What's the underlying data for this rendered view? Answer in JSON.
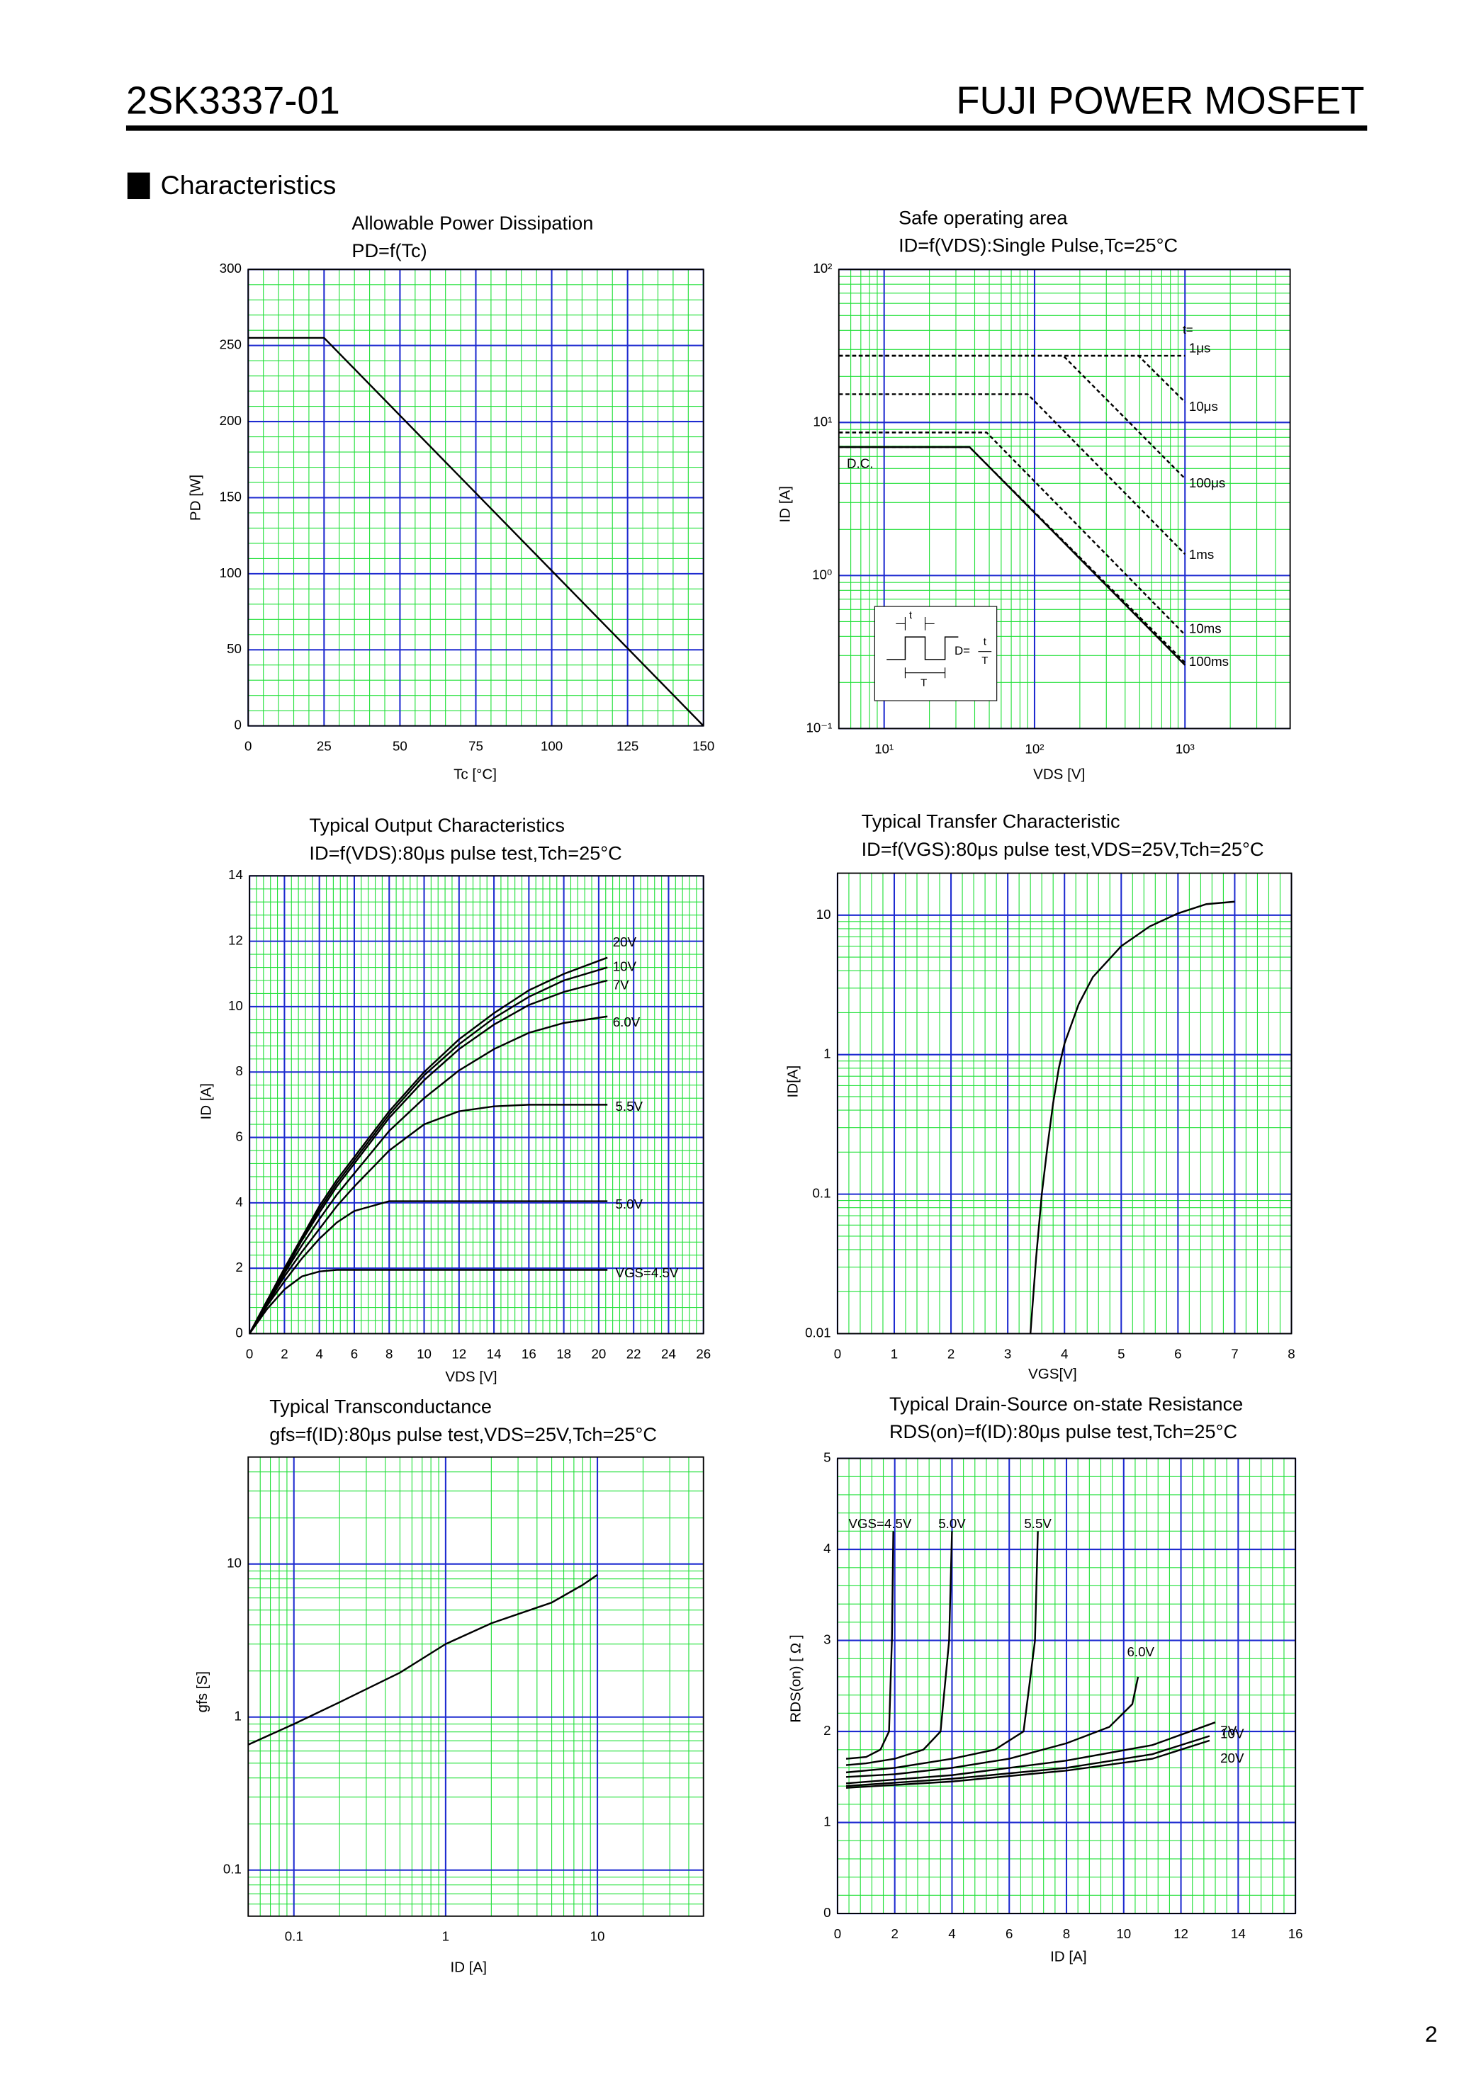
{
  "header": {
    "part_number": "2SK3337-01",
    "product_line": "FUJI POWER MOSFET"
  },
  "section_title": "Characteristics",
  "page_number": "2",
  "chart_data": [
    {
      "type": "line",
      "title": "Allowable Power Dissipation",
      "subtitle": "PD=f(Tc)",
      "xlabel": "Tc [°C]",
      "ylabel": "PD [W]",
      "xlim": [
        0,
        150
      ],
      "xticks": [
        0,
        25,
        50,
        75,
        100,
        125,
        150
      ],
      "ylim": [
        0,
        300
      ],
      "yticks": [
        0,
        50,
        100,
        150,
        200,
        250,
        300
      ],
      "grid": true,
      "series": [
        {
          "color": "#000000",
          "style": "solid",
          "x": [
            0,
            25,
            150
          ],
          "values": [
            255,
            255,
            0
          ]
        }
      ]
    },
    {
      "type": "line",
      "title": "Safe operating area",
      "subtitle": "ID=f(VDS):Single Pulse,Tc=25°C",
      "xlabel": "VDS [V]",
      "ylabel": "ID [A]",
      "xscale": "log",
      "yscale": "log",
      "xlim": [
        5,
        5000
      ],
      "xticks": [
        {
          "value": 10,
          "label": "10¹"
        },
        {
          "value": 100,
          "label": "10²"
        },
        {
          "value": 1000,
          "label": "10³"
        }
      ],
      "ylim": [
        0.1,
        100
      ],
      "yticks": [
        {
          "value": 0.1,
          "label": "10⁻¹"
        },
        {
          "value": 1,
          "label": "10⁰"
        },
        {
          "value": 10,
          "label": "10¹"
        },
        {
          "value": 100,
          "label": "10²"
        }
      ],
      "grid": true,
      "annotations": [
        "t=",
        "t",
        "T",
        "D=",
        "t",
        "T"
      ],
      "series": [
        {
          "name": "1μs",
          "color": "#000000",
          "style": "dashed",
          "x": [
            5,
            1000
          ],
          "values": [
            27.3,
            27.3
          ]
        },
        {
          "name": "10μs",
          "color": "#000000",
          "style": "dashed",
          "x": [
            5,
            490,
            1000
          ],
          "values": [
            27.3,
            27.3,
            13.6
          ]
        },
        {
          "name": "100μs",
          "color": "#000000",
          "style": "dashed",
          "x": [
            5,
            155,
            1000
          ],
          "values": [
            27.3,
            27.3,
            4.3
          ]
        },
        {
          "name": "1ms",
          "color": "#000000",
          "style": "dashed",
          "x": [
            5,
            90,
            1000
          ],
          "values": [
            15.3,
            15.3,
            1.38
          ]
        },
        {
          "name": "10ms",
          "color": "#000000",
          "style": "dashed",
          "x": [
            5,
            48,
            1000
          ],
          "values": [
            8.6,
            8.6,
            0.41
          ]
        },
        {
          "name": "100ms",
          "color": "#000000",
          "style": "dashed",
          "x": [
            5,
            37,
            1000
          ],
          "values": [
            6.9,
            6.9,
            0.27
          ]
        },
        {
          "name": "D.C.",
          "color": "#000000",
          "style": "solid",
          "x": [
            5,
            37,
            1000
          ],
          "values": [
            6.9,
            6.9,
            0.26
          ]
        }
      ]
    },
    {
      "type": "line",
      "title": "Typical Output Characteristics",
      "subtitle": "ID=f(VDS):80μs pulse test,Tch=25°C",
      "xlabel": "VDS [V]",
      "ylabel": "ID [A]",
      "xlim": [
        0,
        26
      ],
      "xticks": [
        0,
        2,
        4,
        6,
        8,
        10,
        12,
        14,
        16,
        18,
        20,
        22,
        24,
        26
      ],
      "ylim": [
        0,
        14
      ],
      "yticks": [
        0,
        2,
        4,
        6,
        8,
        10,
        12,
        14
      ],
      "grid": true,
      "series": [
        {
          "name": "20V",
          "color": "#000000",
          "style": "solid",
          "x": [
            0,
            1,
            2,
            3,
            4,
            5,
            6,
            8,
            10,
            12,
            14,
            16,
            18,
            20.5
          ],
          "values": [
            0,
            1.0,
            2.0,
            2.95,
            3.9,
            4.7,
            5.4,
            6.8,
            8.0,
            9.0,
            9.8,
            10.5,
            11.0,
            11.5
          ]
        },
        {
          "name": "10V",
          "color": "#000000",
          "style": "solid",
          "x": [
            0,
            1,
            2,
            3,
            4,
            5,
            6,
            8,
            10,
            12,
            14,
            16,
            18,
            20.5
          ],
          "values": [
            0,
            1.0,
            1.95,
            2.9,
            3.8,
            4.6,
            5.3,
            6.7,
            7.9,
            8.85,
            9.65,
            10.3,
            10.8,
            11.2
          ]
        },
        {
          "name": "7V",
          "color": "#000000",
          "style": "solid",
          "x": [
            0,
            1,
            2,
            3,
            4,
            5,
            6,
            8,
            10,
            12,
            14,
            16,
            18,
            20.5
          ],
          "values": [
            0,
            1.0,
            1.9,
            2.85,
            3.7,
            4.5,
            5.2,
            6.6,
            7.75,
            8.7,
            9.45,
            10.05,
            10.45,
            10.8
          ]
        },
        {
          "name": "6.0V",
          "color": "#000000",
          "style": "solid",
          "x": [
            0,
            1,
            2,
            3,
            4,
            5,
            6,
            8,
            10,
            12,
            14,
            16,
            18,
            20.5
          ],
          "values": [
            0,
            0.95,
            1.85,
            2.7,
            3.5,
            4.25,
            4.9,
            6.2,
            7.2,
            8.05,
            8.7,
            9.2,
            9.5,
            9.7
          ]
        },
        {
          "name": "5.5V",
          "color": "#000000",
          "style": "solid",
          "x": [
            0,
            1,
            2,
            3,
            4,
            5,
            6,
            8,
            10,
            12,
            14,
            16,
            18,
            20.5
          ],
          "values": [
            0,
            0.9,
            1.75,
            2.5,
            3.2,
            3.9,
            4.5,
            5.6,
            6.4,
            6.8,
            6.95,
            7.0,
            7.0,
            7.0
          ]
        },
        {
          "name": "5.0V",
          "color": "#000000",
          "style": "solid",
          "x": [
            0,
            1,
            2,
            3,
            4,
            5,
            6,
            8,
            10,
            12,
            14,
            16,
            18,
            20.5
          ],
          "values": [
            0,
            0.85,
            1.6,
            2.3,
            2.9,
            3.4,
            3.75,
            4.05,
            4.05,
            4.05,
            4.05,
            4.05,
            4.05,
            4.05
          ]
        },
        {
          "name": "VGS=4.5V",
          "color": "#000000",
          "style": "solid",
          "x": [
            0,
            1,
            2,
            3,
            4,
            5,
            6,
            8,
            10,
            12,
            14,
            16,
            18,
            20.5
          ],
          "values": [
            0,
            0.75,
            1.35,
            1.75,
            1.9,
            1.95,
            1.95,
            1.95,
            1.95,
            1.95,
            1.95,
            1.95,
            1.95,
            1.95
          ]
        }
      ]
    },
    {
      "type": "line",
      "title": "Typical Transfer Characteristic",
      "subtitle": "ID=f(VGS):80μs pulse test,VDS=25V,Tch=25°C",
      "xlabel": "VGS[V]",
      "ylabel": "ID[A]",
      "yscale": "log",
      "xlim": [
        0,
        8
      ],
      "xticks": [
        0,
        1,
        2,
        3,
        4,
        5,
        6,
        7,
        8
      ],
      "ylim": [
        0.01,
        20
      ],
      "yticks": [
        0.01,
        0.1,
        1,
        10
      ],
      "grid": true,
      "series": [
        {
          "color": "#000000",
          "style": "solid",
          "x": [
            3.4,
            3.5,
            3.6,
            3.7,
            3.8,
            3.9,
            4.0,
            4.25,
            4.5,
            5.0,
            5.5,
            6.0,
            6.5,
            7.0
          ],
          "values": [
            0.01,
            0.035,
            0.1,
            0.22,
            0.45,
            0.8,
            1.2,
            2.3,
            3.6,
            6.0,
            8.3,
            10.3,
            12,
            12.5
          ]
        }
      ]
    },
    {
      "type": "line",
      "title": "Typical Transconductance",
      "subtitle": "gfs=f(ID):80μs pulse test,VDS=25V,Tch=25°C",
      "xlabel": "ID [A]",
      "ylabel": "gfs [S]",
      "xscale": "log",
      "yscale": "log",
      "xlim": [
        0.05,
        50
      ],
      "xticks": [
        0.1,
        1,
        10
      ],
      "ylim": [
        0.05,
        50
      ],
      "yticks": [
        0.1,
        1,
        10
      ],
      "grid": true,
      "series": [
        {
          "color": "#000000",
          "style": "solid",
          "x": [
            0.05,
            0.1,
            0.2,
            0.5,
            1,
            2,
            5,
            8,
            10
          ],
          "values": [
            0.66,
            0.9,
            1.25,
            1.95,
            3.0,
            4.1,
            5.6,
            7.3,
            8.5
          ]
        }
      ]
    },
    {
      "type": "line",
      "title": "Typical Drain-Source on-state Resistance",
      "subtitle": "RDS(on)=f(ID):80μs pulse test,Tch=25°C",
      "xlabel": "ID [A]",
      "ylabel": "RDS(on) [ Ω ]",
      "xlim": [
        0,
        16
      ],
      "xticks": [
        0,
        2,
        4,
        6,
        8,
        10,
        12,
        14,
        16
      ],
      "ylim": [
        0,
        5
      ],
      "yticks": [
        0,
        1,
        2,
        3,
        4,
        5
      ],
      "grid": true,
      "series": [
        {
          "name": "VGS=4.5V",
          "color": "#000000",
          "style": "solid",
          "x": [
            0.3,
            1,
            1.5,
            1.8,
            1.9,
            1.95
          ],
          "values": [
            1.7,
            1.72,
            1.8,
            2.0,
            3.0,
            4.2
          ]
        },
        {
          "name": "5.0V",
          "color": "#000000",
          "style": "solid",
          "x": [
            0.3,
            1,
            2,
            3,
            3.6,
            3.9,
            4.0
          ],
          "values": [
            1.63,
            1.65,
            1.7,
            1.8,
            2.0,
            3.0,
            4.2
          ]
        },
        {
          "name": "5.5V",
          "color": "#000000",
          "style": "solid",
          "x": [
            0.3,
            2,
            4,
            5.5,
            6.5,
            6.9,
            7.0
          ],
          "values": [
            1.55,
            1.6,
            1.7,
            1.8,
            2.0,
            3.0,
            4.2
          ]
        },
        {
          "name": "6.0V",
          "color": "#000000",
          "style": "solid",
          "x": [
            0.3,
            2,
            4,
            6,
            8,
            9.5,
            10.3,
            10.5
          ],
          "values": [
            1.5,
            1.53,
            1.6,
            1.7,
            1.87,
            2.05,
            2.3,
            2.6
          ]
        },
        {
          "name": "7V",
          "color": "#000000",
          "style": "solid",
          "x": [
            0.3,
            4,
            8,
            11,
            13.2
          ],
          "values": [
            1.43,
            1.52,
            1.68,
            1.85,
            2.1
          ]
        },
        {
          "name": "10V",
          "color": "#000000",
          "style": "solid",
          "x": [
            0.3,
            4,
            8,
            11,
            13
          ],
          "values": [
            1.4,
            1.48,
            1.6,
            1.75,
            1.95
          ]
        },
        {
          "name": "20V",
          "color": "#000000",
          "style": "solid",
          "x": [
            0.3,
            4,
            8,
            11,
            13
          ],
          "values": [
            1.38,
            1.45,
            1.57,
            1.7,
            1.9
          ]
        }
      ]
    }
  ]
}
